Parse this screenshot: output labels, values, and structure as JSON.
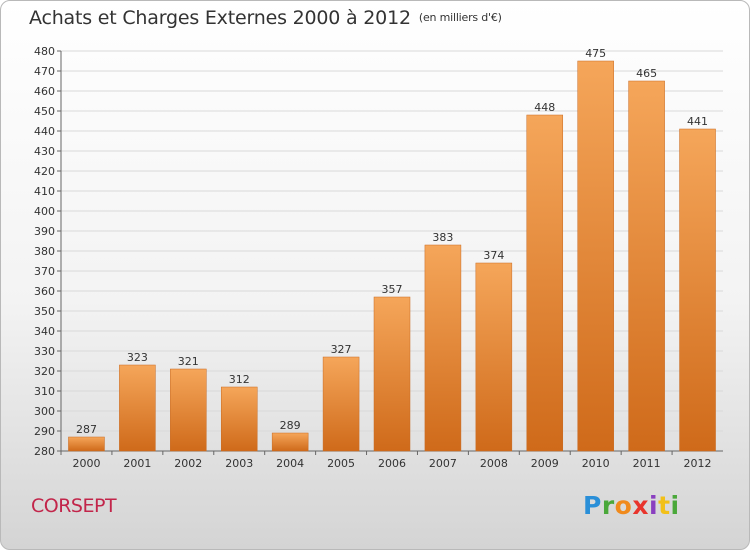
{
  "title": "Achats et Charges Externes 2000 à 2012",
  "unit": "(en milliers d'€)",
  "commune": "CORSEPT",
  "logo": {
    "letters": [
      "P",
      "r",
      "o",
      "x",
      "i",
      "t",
      "i"
    ],
    "colors": [
      "#2a8fd8",
      "#4aa83a",
      "#f08a1c",
      "#e8342c",
      "#8a3fc0",
      "#f2c018",
      "#4aa83a"
    ]
  },
  "colors": {
    "bar_top": "#f5a65a",
    "bar_bottom": "#cf6a1a",
    "grid": "#d9d9d9",
    "axis": "#666666",
    "commune": "#c2254a"
  },
  "chart_data": {
    "type": "bar",
    "categories": [
      "2000",
      "2001",
      "2002",
      "2003",
      "2004",
      "2005",
      "2006",
      "2007",
      "2008",
      "2009",
      "2010",
      "2011",
      "2012"
    ],
    "values": [
      287,
      323,
      321,
      312,
      289,
      327,
      357,
      383,
      374,
      448,
      475,
      465,
      441
    ],
    "ylim": [
      280,
      480
    ],
    "ytick_step": 10,
    "grid": true,
    "data_labels": true
  }
}
